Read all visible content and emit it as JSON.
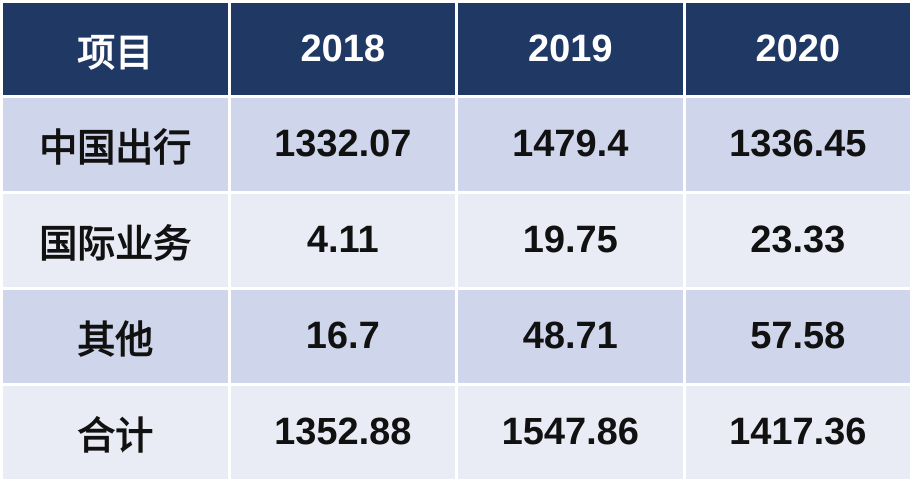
{
  "table": {
    "header": [
      "项目",
      "2018",
      "2019",
      "2020"
    ],
    "rows": [
      [
        "中国出行",
        "1332.07",
        "1479.4",
        "1336.45"
      ],
      [
        "国际业务",
        "4.11",
        "19.75",
        "23.33"
      ],
      [
        "其他",
        "16.7",
        "48.71",
        "57.58"
      ],
      [
        "合计",
        "1352.88",
        "1547.86",
        "1417.36"
      ]
    ]
  }
}
